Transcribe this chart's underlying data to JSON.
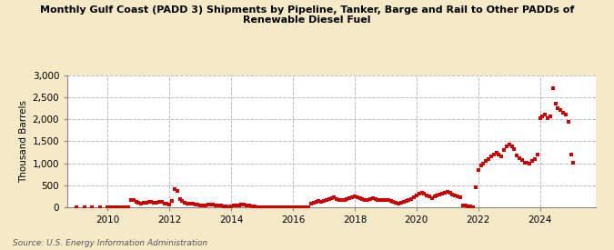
{
  "title": "Monthly Gulf Coast (PADD 3) Shipments by Pipeline, Tanker, Barge and Rail to Other PADDs of\nRenewable Diesel Fuel",
  "ylabel": "Thousand Barrels",
  "source": "Source: U.S. Energy Information Administration",
  "outer_bg": "#f5e9c8",
  "plot_bg": "#ffffff",
  "dot_color": "#cc0000",
  "ylim": [
    0,
    3000
  ],
  "yticks": [
    0,
    500,
    1000,
    1500,
    2000,
    2500,
    3000
  ],
  "xlim_start": 2008.7,
  "xlim_end": 2025.8,
  "xticks": [
    2010,
    2012,
    2014,
    2016,
    2018,
    2020,
    2022,
    2024
  ],
  "data": [
    [
      2009.0,
      0
    ],
    [
      2009.25,
      0
    ],
    [
      2009.5,
      0
    ],
    [
      2009.75,
      0
    ],
    [
      2010.0,
      2
    ],
    [
      2010.083,
      5
    ],
    [
      2010.167,
      3
    ],
    [
      2010.25,
      2
    ],
    [
      2010.333,
      3
    ],
    [
      2010.417,
      2
    ],
    [
      2010.5,
      2
    ],
    [
      2010.583,
      2
    ],
    [
      2010.667,
      5
    ],
    [
      2010.75,
      180
    ],
    [
      2010.833,
      160
    ],
    [
      2010.917,
      130
    ],
    [
      2011.0,
      100
    ],
    [
      2011.083,
      85
    ],
    [
      2011.167,
      110
    ],
    [
      2011.25,
      100
    ],
    [
      2011.333,
      120
    ],
    [
      2011.417,
      130
    ],
    [
      2011.5,
      110
    ],
    [
      2011.583,
      105
    ],
    [
      2011.667,
      120
    ],
    [
      2011.75,
      130
    ],
    [
      2011.833,
      80
    ],
    [
      2011.917,
      90
    ],
    [
      2012.0,
      60
    ],
    [
      2012.083,
      140
    ],
    [
      2012.167,
      420
    ],
    [
      2012.25,
      380
    ],
    [
      2012.333,
      200
    ],
    [
      2012.417,
      150
    ],
    [
      2012.5,
      100
    ],
    [
      2012.583,
      80
    ],
    [
      2012.667,
      85
    ],
    [
      2012.75,
      90
    ],
    [
      2012.833,
      70
    ],
    [
      2012.917,
      60
    ],
    [
      2013.0,
      55
    ],
    [
      2013.083,
      50
    ],
    [
      2013.167,
      45
    ],
    [
      2013.25,
      60
    ],
    [
      2013.333,
      75
    ],
    [
      2013.417,
      70
    ],
    [
      2013.5,
      55
    ],
    [
      2013.583,
      45
    ],
    [
      2013.667,
      40
    ],
    [
      2013.75,
      35
    ],
    [
      2013.833,
      25
    ],
    [
      2013.917,
      15
    ],
    [
      2014.0,
      30
    ],
    [
      2014.083,
      45
    ],
    [
      2014.167,
      55
    ],
    [
      2014.25,
      50
    ],
    [
      2014.333,
      60
    ],
    [
      2014.417,
      65
    ],
    [
      2014.5,
      55
    ],
    [
      2014.583,
      45
    ],
    [
      2014.667,
      30
    ],
    [
      2014.75,
      20
    ],
    [
      2014.833,
      10
    ],
    [
      2014.917,
      5
    ],
    [
      2015.0,
      3
    ],
    [
      2015.083,
      2
    ],
    [
      2015.167,
      1
    ],
    [
      2015.25,
      1
    ],
    [
      2015.333,
      2
    ],
    [
      2015.417,
      2
    ],
    [
      2015.5,
      3
    ],
    [
      2015.583,
      3
    ],
    [
      2015.667,
      4
    ],
    [
      2015.75,
      5
    ],
    [
      2015.833,
      3
    ],
    [
      2015.917,
      2
    ],
    [
      2016.0,
      2
    ],
    [
      2016.083,
      1
    ],
    [
      2016.167,
      1
    ],
    [
      2016.25,
      1
    ],
    [
      2016.333,
      2
    ],
    [
      2016.417,
      2
    ],
    [
      2016.5,
      5
    ],
    [
      2016.583,
      80
    ],
    [
      2016.667,
      100
    ],
    [
      2016.75,
      120
    ],
    [
      2016.833,
      140
    ],
    [
      2016.917,
      130
    ],
    [
      2017.0,
      150
    ],
    [
      2017.083,
      180
    ],
    [
      2017.167,
      200
    ],
    [
      2017.25,
      220
    ],
    [
      2017.333,
      230
    ],
    [
      2017.417,
      200
    ],
    [
      2017.5,
      180
    ],
    [
      2017.583,
      160
    ],
    [
      2017.667,
      170
    ],
    [
      2017.75,
      190
    ],
    [
      2017.833,
      210
    ],
    [
      2017.917,
      240
    ],
    [
      2018.0,
      260
    ],
    [
      2018.083,
      240
    ],
    [
      2018.167,
      210
    ],
    [
      2018.25,
      190
    ],
    [
      2018.333,
      170
    ],
    [
      2018.417,
      180
    ],
    [
      2018.5,
      200
    ],
    [
      2018.583,
      220
    ],
    [
      2018.667,
      200
    ],
    [
      2018.75,
      180
    ],
    [
      2018.833,
      160
    ],
    [
      2018.917,
      170
    ],
    [
      2019.0,
      180
    ],
    [
      2019.083,
      160
    ],
    [
      2019.167,
      140
    ],
    [
      2019.25,
      120
    ],
    [
      2019.333,
      100
    ],
    [
      2019.417,
      90
    ],
    [
      2019.5,
      100
    ],
    [
      2019.583,
      120
    ],
    [
      2019.667,
      140
    ],
    [
      2019.75,
      160
    ],
    [
      2019.833,
      200
    ],
    [
      2019.917,
      240
    ],
    [
      2020.0,
      280
    ],
    [
      2020.083,
      310
    ],
    [
      2020.167,
      340
    ],
    [
      2020.25,
      310
    ],
    [
      2020.333,
      280
    ],
    [
      2020.417,
      250
    ],
    [
      2020.5,
      220
    ],
    [
      2020.583,
      250
    ],
    [
      2020.667,
      270
    ],
    [
      2020.75,
      300
    ],
    [
      2020.833,
      320
    ],
    [
      2020.917,
      340
    ],
    [
      2021.0,
      360
    ],
    [
      2021.083,
      330
    ],
    [
      2021.167,
      300
    ],
    [
      2021.25,
      280
    ],
    [
      2021.333,
      260
    ],
    [
      2021.417,
      240
    ],
    [
      2021.5,
      50
    ],
    [
      2021.583,
      40
    ],
    [
      2021.667,
      30
    ],
    [
      2021.75,
      20
    ],
    [
      2021.833,
      10
    ],
    [
      2021.917,
      450
    ],
    [
      2022.0,
      850
    ],
    [
      2022.083,
      950
    ],
    [
      2022.167,
      1000
    ],
    [
      2022.25,
      1050
    ],
    [
      2022.333,
      1100
    ],
    [
      2022.417,
      1150
    ],
    [
      2022.5,
      1200
    ],
    [
      2022.583,
      1250
    ],
    [
      2022.667,
      1200
    ],
    [
      2022.75,
      1150
    ],
    [
      2022.833,
      1300
    ],
    [
      2022.917,
      1380
    ],
    [
      2023.0,
      1420
    ],
    [
      2023.083,
      1380
    ],
    [
      2023.167,
      1320
    ],
    [
      2023.25,
      1180
    ],
    [
      2023.333,
      1120
    ],
    [
      2023.417,
      1080
    ],
    [
      2023.5,
      1020
    ],
    [
      2023.583,
      1010
    ],
    [
      2023.667,
      1000
    ],
    [
      2023.75,
      1050
    ],
    [
      2023.833,
      1100
    ],
    [
      2023.917,
      1200
    ],
    [
      2024.0,
      2020
    ],
    [
      2024.083,
      2060
    ],
    [
      2024.167,
      2100
    ],
    [
      2024.25,
      2020
    ],
    [
      2024.333,
      2060
    ],
    [
      2024.417,
      2700
    ],
    [
      2024.5,
      2350
    ],
    [
      2024.583,
      2250
    ],
    [
      2024.667,
      2200
    ],
    [
      2024.75,
      2150
    ],
    [
      2024.833,
      2100
    ],
    [
      2024.917,
      1950
    ],
    [
      2025.0,
      1200
    ],
    [
      2025.083,
      1020
    ]
  ]
}
